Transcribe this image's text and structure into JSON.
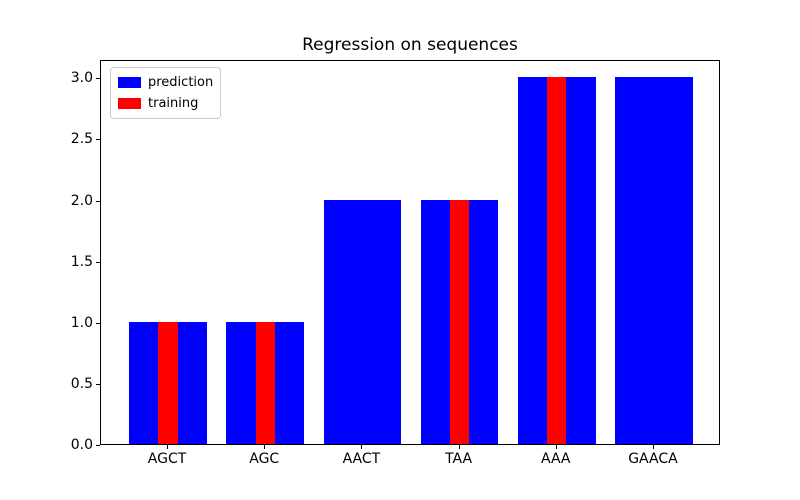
{
  "title": "Regression on sequences",
  "colors": {
    "prediction": "#0000ff",
    "training": "#ff0000",
    "axis": "#000000",
    "legend_border": "#cccccc",
    "background": "#ffffff"
  },
  "chart_data": {
    "type": "bar",
    "title": "Regression on sequences",
    "xlabel": "",
    "ylabel": "",
    "categories": [
      "AGCT",
      "AGC",
      "AACT",
      "TAA",
      "AAA",
      "GAACA"
    ],
    "series": [
      {
        "name": "prediction",
        "color": "#0000ff",
        "bar_width": 0.8,
        "values": [
          1,
          1,
          2,
          2,
          3,
          3
        ]
      },
      {
        "name": "training",
        "color": "#ff0000",
        "bar_width": 0.2,
        "values": [
          1,
          1,
          null,
          2,
          3,
          null
        ]
      }
    ],
    "xlim": [
      -0.69,
      5.69
    ],
    "ylim": [
      0,
      3.15
    ],
    "yticks": [
      0,
      0.5,
      1,
      1.5,
      2,
      2.5,
      3
    ],
    "ytick_labels": [
      "0.0",
      "0.5",
      "1.0",
      "1.5",
      "2.0",
      "2.5",
      "3.0"
    ],
    "grid": false,
    "legend": {
      "position": "upper left",
      "entries": [
        {
          "label": "prediction",
          "color": "#0000ff"
        },
        {
          "label": "training",
          "color": "#ff0000"
        }
      ]
    }
  }
}
